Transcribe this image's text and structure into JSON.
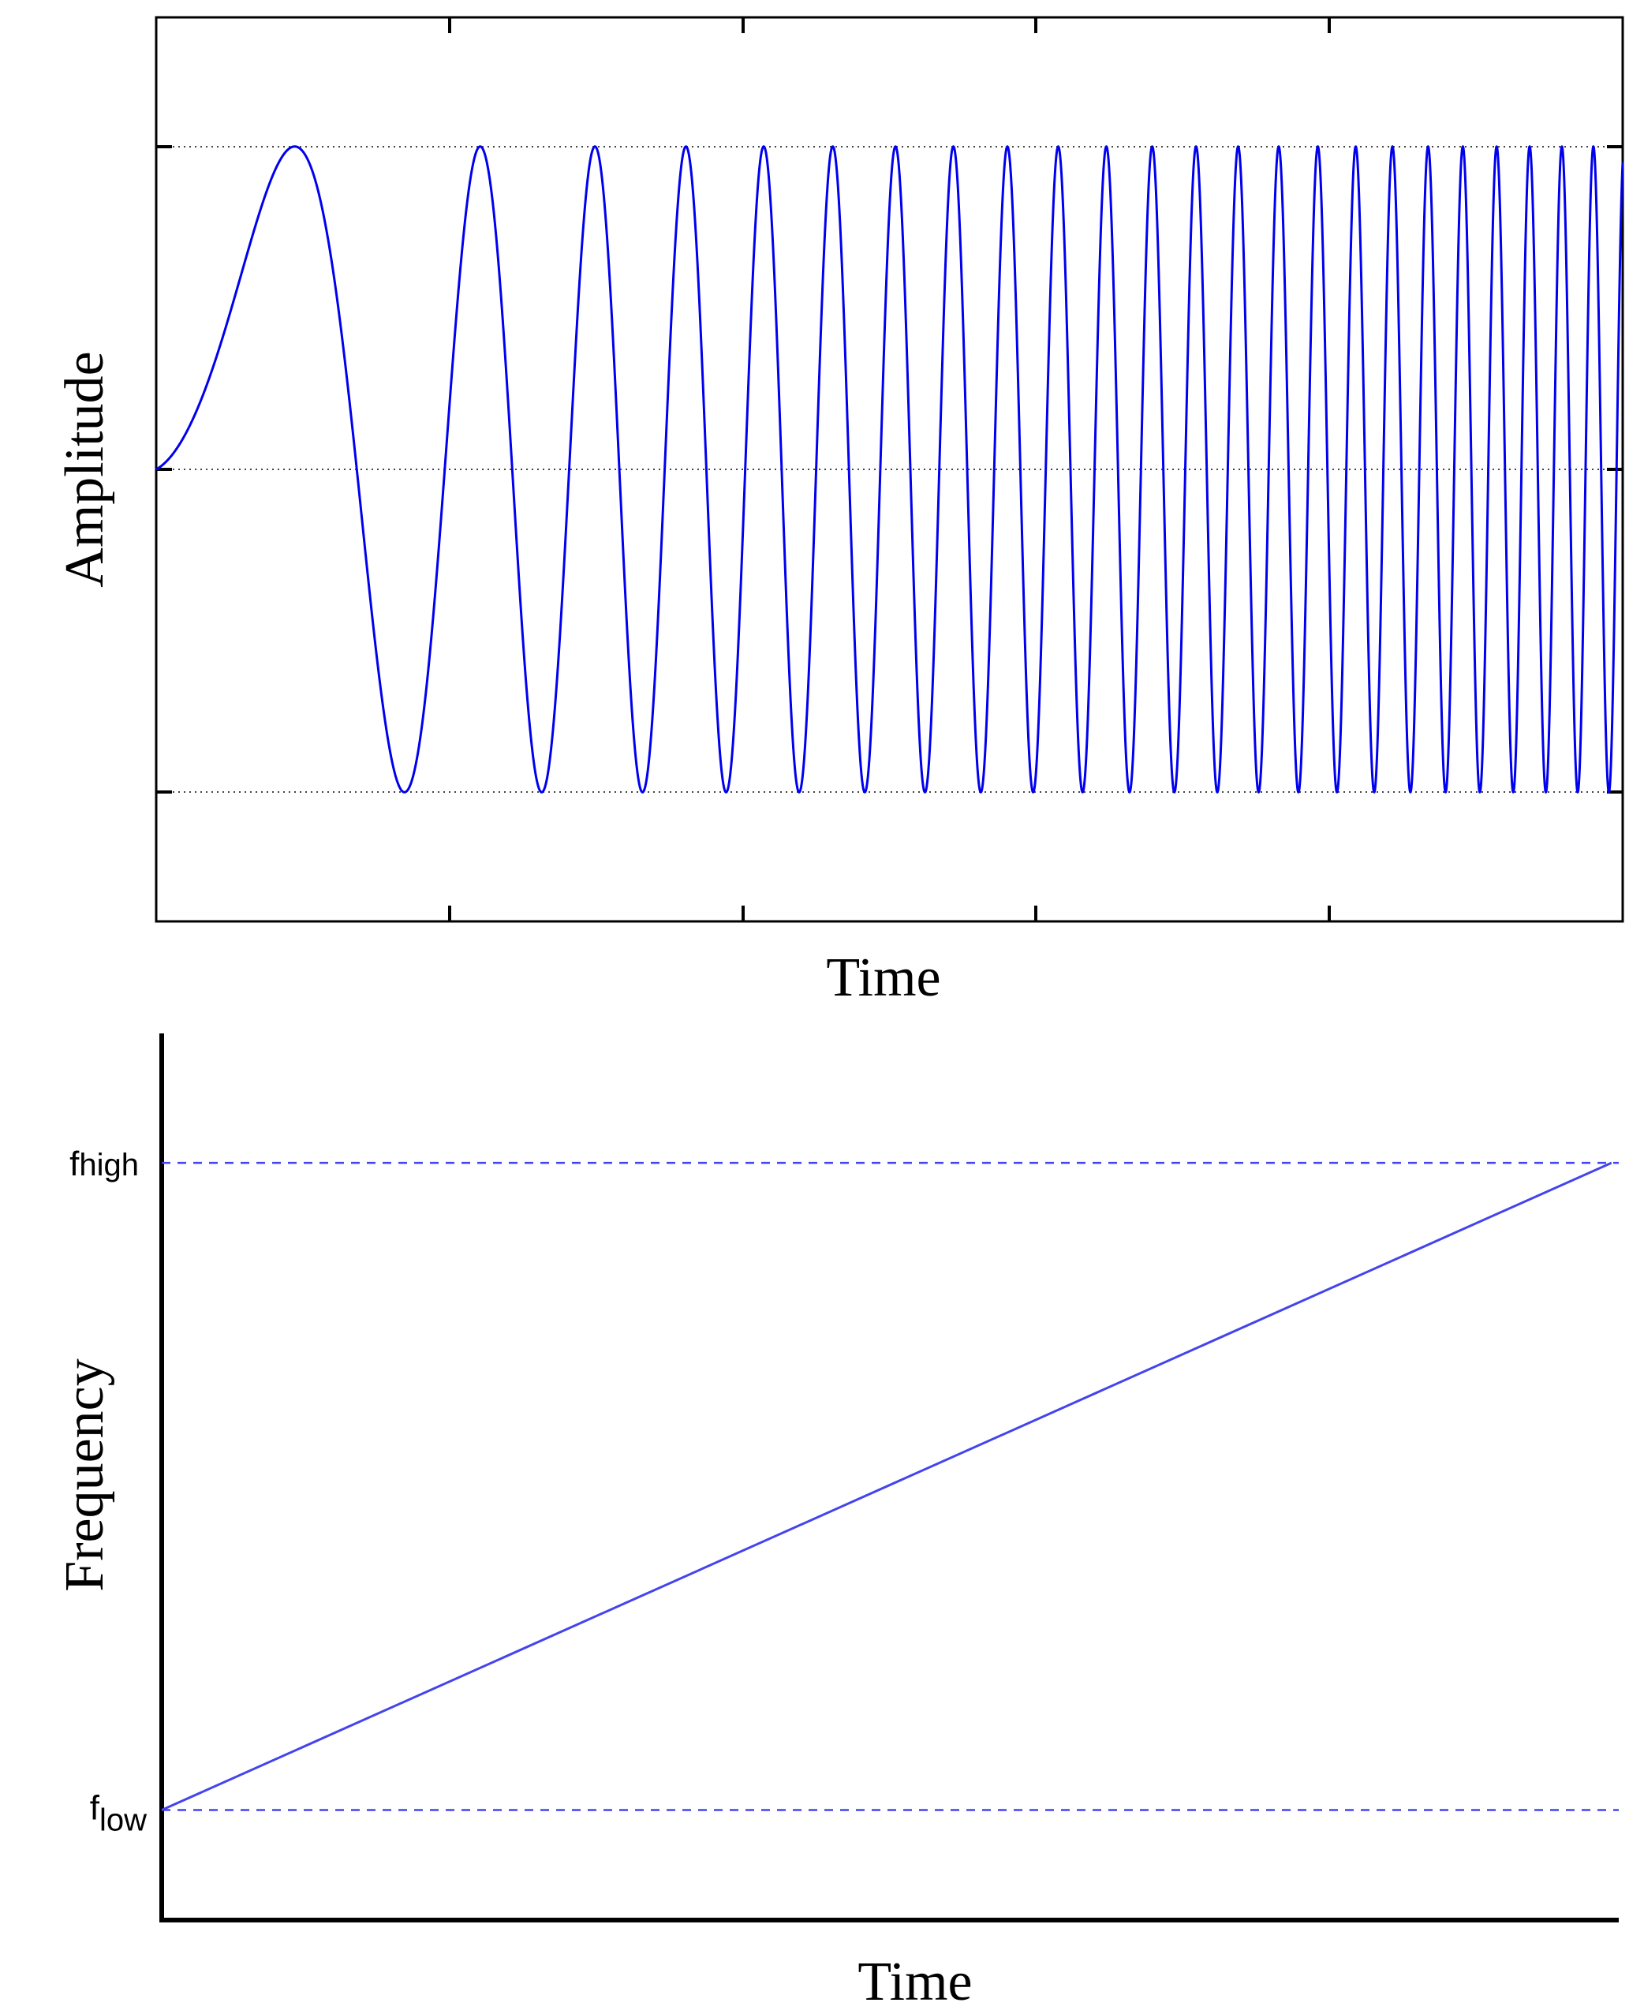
{
  "chart_data": [
    {
      "type": "line",
      "title": "",
      "xlabel": "Time",
      "ylabel": "Amplitude",
      "series": [
        {
          "description": "linear chirp signal, amplitude 1, frequency rising linearly from low to high",
          "color": "#0000ee"
        }
      ],
      "ylim": [
        -1.4,
        1.4
      ],
      "y_gridlines": [
        -1,
        0,
        1
      ],
      "grid": "dotted horizontal at -1, 0, 1",
      "x_tick_count": 4,
      "tick_labels_shown": false,
      "frequency_range_cycles": [
        0.4,
        48
      ],
      "legend": "none"
    },
    {
      "type": "line",
      "title": "",
      "xlabel": "Time",
      "ylabel": "Frequency",
      "series": [
        {
          "description": "frequency increasing linearly over time",
          "x": [
            0,
            1
          ],
          "y": [
            0,
            1
          ],
          "color": "#4444ee"
        }
      ],
      "y_reference_lines": [
        {
          "base": "f",
          "sub": "low",
          "value": 0
        },
        {
          "base": "f",
          "sub": "high",
          "value": 1
        }
      ],
      "ylim": [
        -0.17,
        1.2
      ],
      "xlim": [
        0,
        1.005
      ],
      "legend": "none"
    }
  ]
}
